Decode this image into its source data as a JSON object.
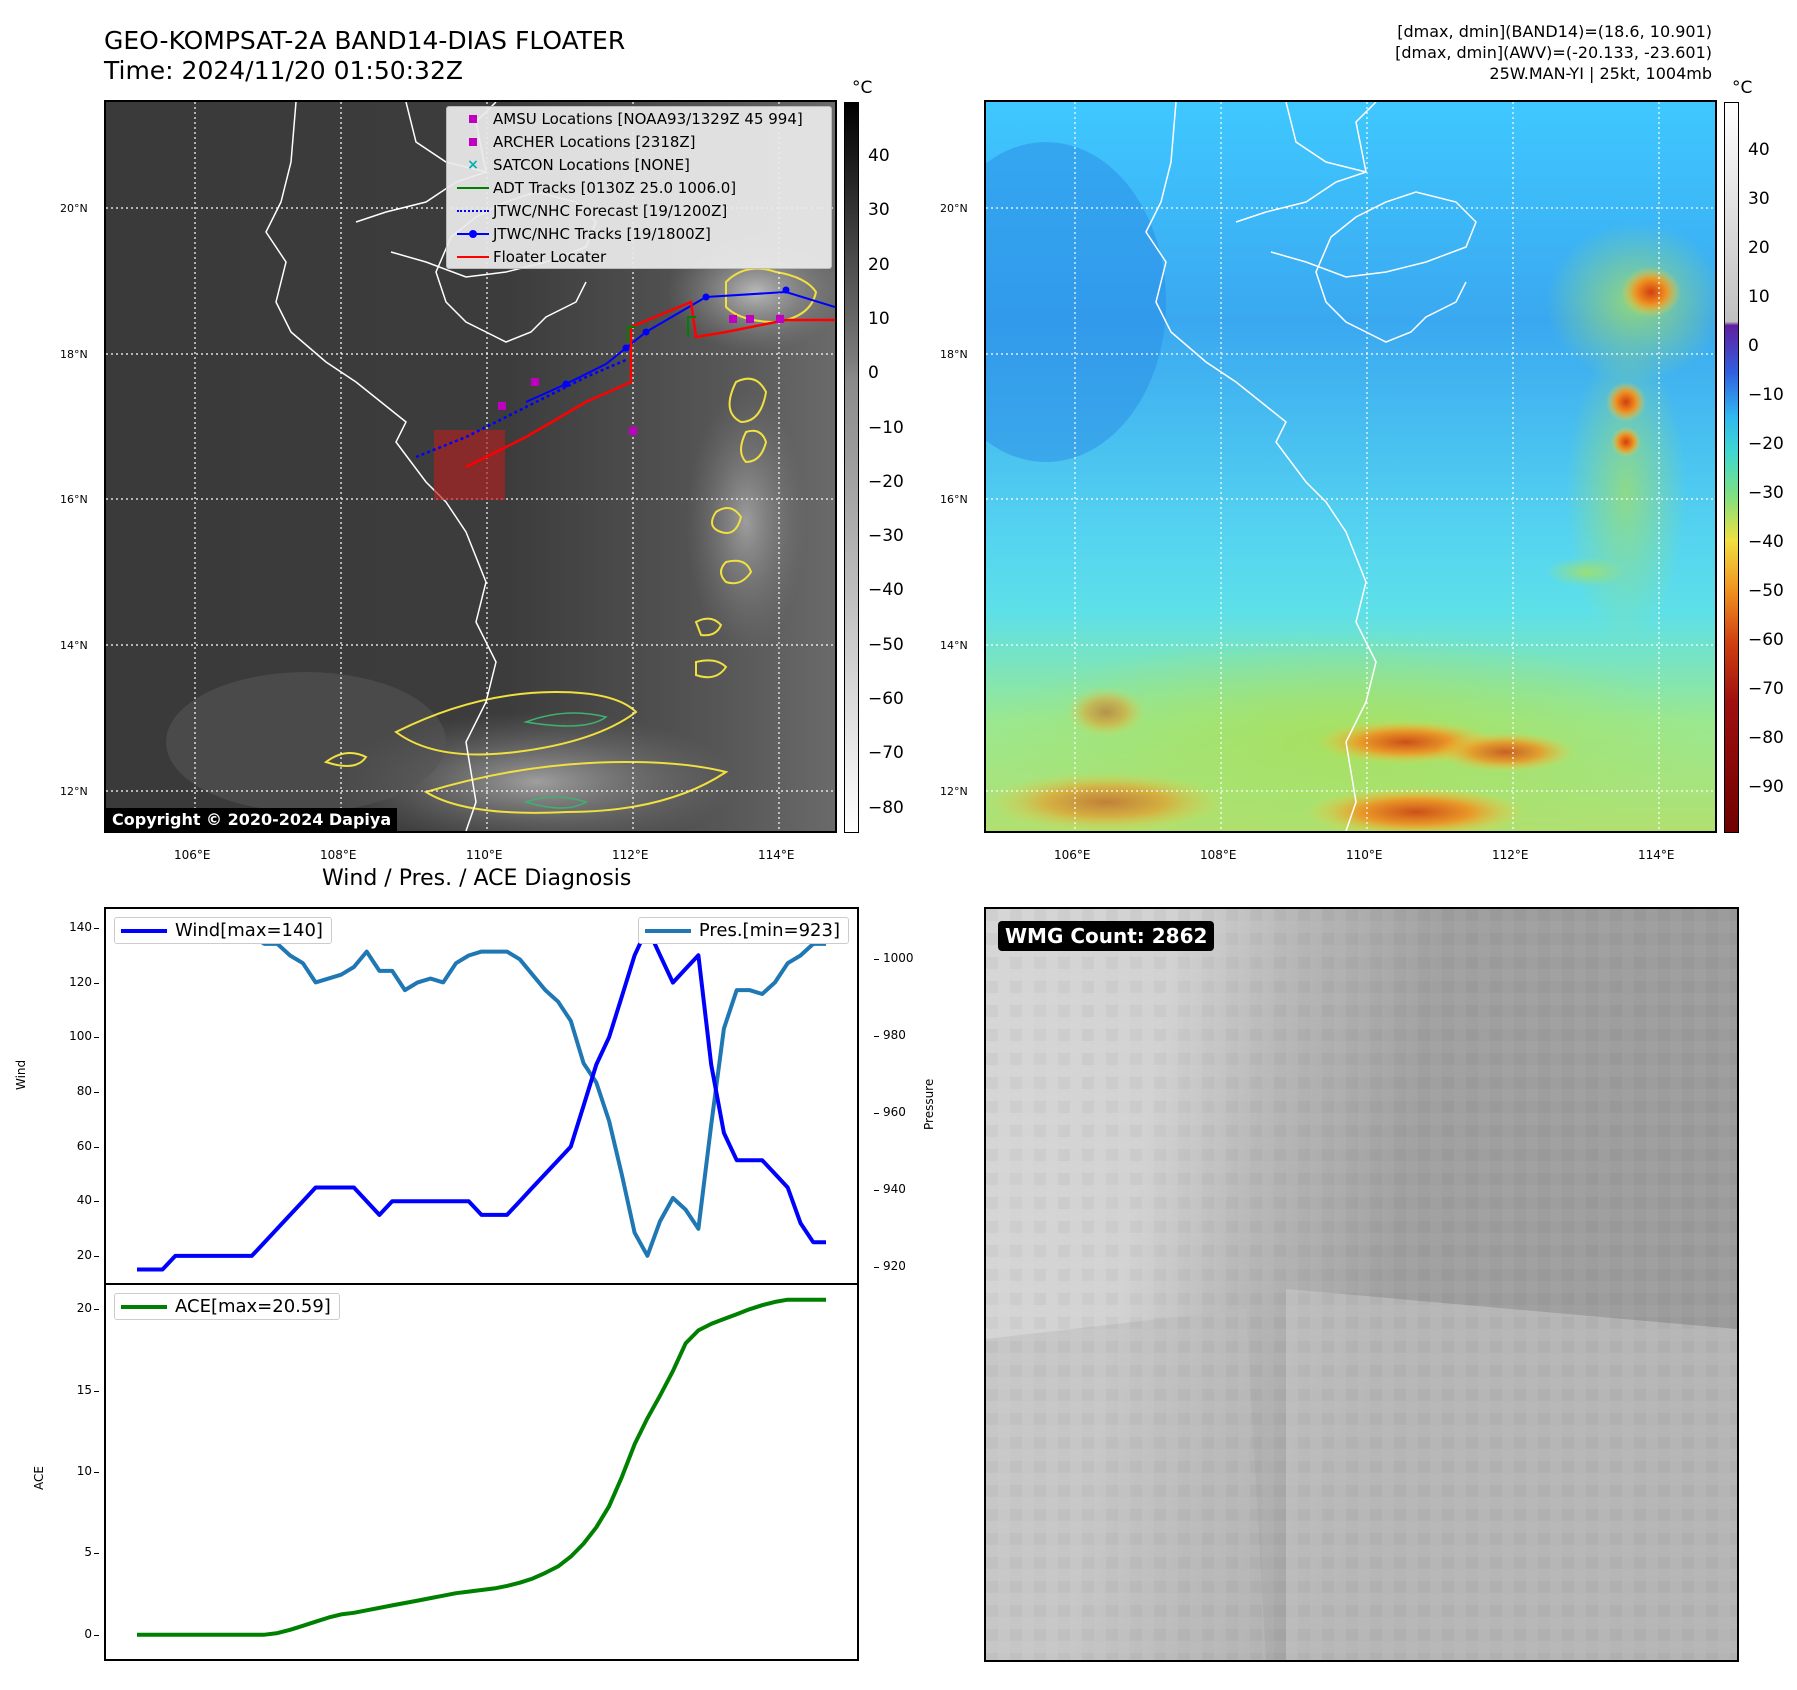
{
  "header": {
    "title_line1": "GEO-KOMPSAT-2A BAND14-DIAS FLOATER",
    "title_line2": "Time: 2024/11/20 01:50:32Z",
    "info_line1": "[dmax, dmin](BAND14)=(18.6, 10.901)",
    "info_line2": "[dmax, dmin](AWV)=(-20.133, -23.601)",
    "info_line3": "25W.MAN-YI | 25kt, 1004mb"
  },
  "map": {
    "lon_ticks": [
      "106°E",
      "108°E",
      "110°E",
      "112°E",
      "114°E"
    ],
    "lat_ticks": [
      "20°N",
      "18°N",
      "16°N",
      "14°N",
      "12°N"
    ],
    "copyright": "Copyright © 2020-2024 Dapiya",
    "legend": [
      {
        "label": "AMSU Locations [NOAA93/1329Z 45 994]",
        "marker": "square",
        "color": "#c000c0"
      },
      {
        "label": "ARCHER Locations [2318Z]",
        "marker": "square",
        "color": "#c000c0"
      },
      {
        "label": "SATCON Locations [NONE]",
        "marker": "x",
        "color": "#00b0b0"
      },
      {
        "label": "ADT Tracks [0130Z 25.0 1006.0]",
        "marker": "line",
        "color": "#008000"
      },
      {
        "label": "JTWC/NHC Forecast [19/1200Z]",
        "marker": "dotted",
        "color": "#0000ff"
      },
      {
        "label": "JTWC/NHC Tracks [19/1800Z]",
        "marker": "line-dot",
        "color": "#0000ff"
      },
      {
        "label": "Floater Locater",
        "marker": "line",
        "color": "#ff0000"
      }
    ]
  },
  "colorbar_left": {
    "unit": "°C",
    "ticks": [
      "40",
      "30",
      "20",
      "10",
      "0",
      "−10",
      "−20",
      "−30",
      "−40",
      "−50",
      "−60",
      "−70",
      "−80"
    ]
  },
  "colorbar_right": {
    "unit": "°C",
    "ticks": [
      "40",
      "30",
      "20",
      "10",
      "0",
      "−10",
      "−20",
      "−30",
      "−40",
      "−50",
      "−60",
      "−70",
      "−80",
      "−90"
    ]
  },
  "diag": {
    "title": "Wind / Pres. / ACE Diagnosis",
    "wind_ylabel": "Wind",
    "pres_ylabel": "Pressure",
    "ace_ylabel": "ACE",
    "wind_legend": "Wind[max=140]",
    "pres_legend": "Pres.[min=923]",
    "ace_legend": "ACE[max=20.59]",
    "wind_ticks": [
      "140",
      "120",
      "100",
      "80",
      "60",
      "40",
      "20"
    ],
    "pres_ticks": [
      "1000",
      "980",
      "960",
      "940",
      "920"
    ],
    "ace_ticks": [
      "20",
      "15",
      "10",
      "5",
      "0"
    ]
  },
  "wmg": {
    "label": "WMG Count: 2862"
  },
  "chart_data": [
    {
      "type": "line",
      "title": "Wind / Pres. / ACE Diagnosis",
      "ylabel": "Wind",
      "ylim": [
        13,
        144
      ],
      "series": [
        {
          "name": "Wind[max=140]",
          "color": "#0000ff",
          "values": [
            15,
            15,
            15,
            20,
            20,
            20,
            20,
            20,
            20,
            20,
            25,
            30,
            35,
            40,
            45,
            45,
            45,
            45,
            40,
            35,
            40,
            40,
            40,
            40,
            40,
            40,
            40,
            35,
            35,
            35,
            40,
            45,
            50,
            55,
            60,
            75,
            90,
            100,
            115,
            130,
            140,
            130,
            120,
            125,
            130,
            90,
            65,
            55,
            55,
            55,
            50,
            45,
            32,
            25,
            25
          ]
        }
      ]
    },
    {
      "type": "line",
      "ylabel": "Pressure",
      "ylim": [
        918,
        1011
      ],
      "series": [
        {
          "name": "Pres.[min=923]",
          "color": "#1f77b4",
          "values": [
            1009,
            1009,
            1007,
            1007,
            1007,
            1007,
            1006,
            1006,
            1006,
            1006,
            1004,
            1004,
            1001,
            999,
            994,
            995,
            996,
            998,
            1002,
            997,
            997,
            992,
            994,
            995,
            994,
            999,
            1001,
            1002,
            1002,
            1002,
            1000,
            996,
            992,
            989,
            984,
            973,
            968,
            958,
            944,
            929,
            923,
            932,
            938,
            935,
            930,
            957,
            982,
            992,
            992,
            991,
            994,
            999,
            1001,
            1004,
            1004
          ]
        }
      ]
    },
    {
      "type": "line",
      "ylabel": "ACE",
      "ylim": [
        -1,
        21
      ],
      "series": [
        {
          "name": "ACE[max=20.59]",
          "color": "#008000",
          "values": [
            0,
            0,
            0,
            0,
            0,
            0,
            0,
            0,
            0,
            0,
            0,
            0.1,
            0.3,
            0.55,
            0.8,
            1.05,
            1.25,
            1.35,
            1.5,
            1.65,
            1.8,
            1.95,
            2.1,
            2.25,
            2.4,
            2.55,
            2.65,
            2.75,
            2.85,
            3.0,
            3.2,
            3.45,
            3.8,
            4.2,
            4.8,
            5.6,
            6.6,
            7.9,
            9.7,
            11.7,
            13.3,
            14.7,
            16.2,
            17.9,
            18.7,
            19.1,
            19.4,
            19.7,
            20.0,
            20.25,
            20.45,
            20.59,
            20.59,
            20.59,
            20.59
          ]
        }
      ]
    }
  ]
}
